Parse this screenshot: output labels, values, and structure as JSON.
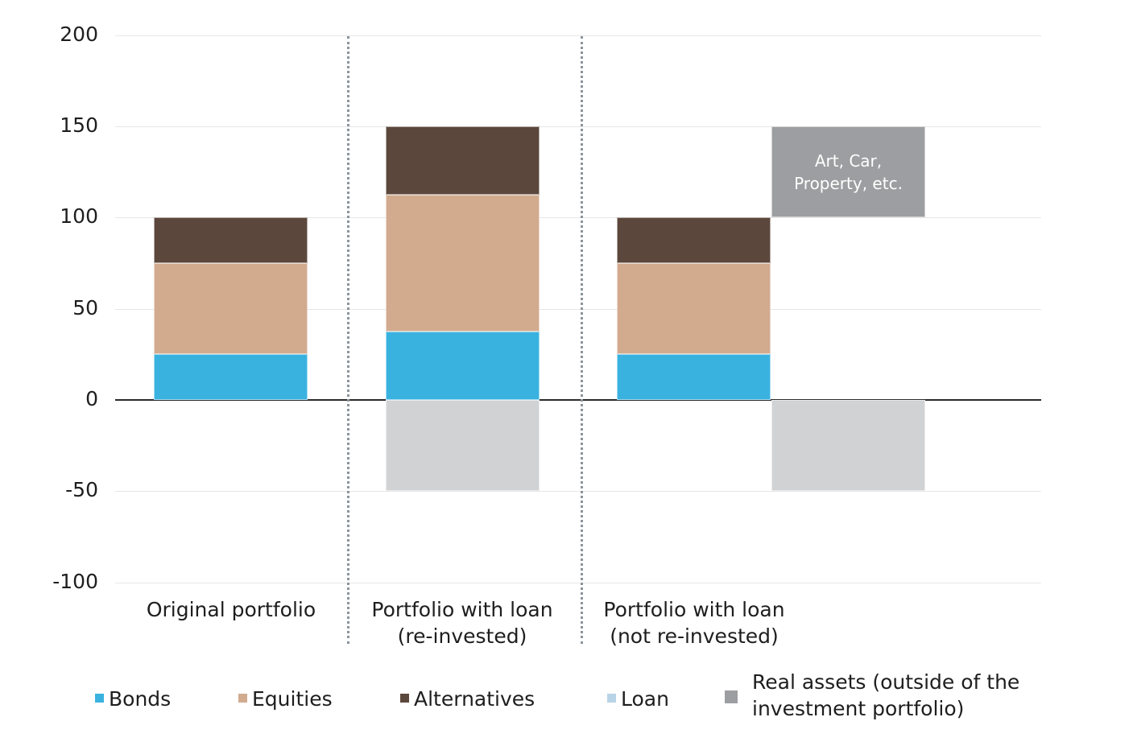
{
  "chart_data": {
    "type": "bar",
    "stacked": true,
    "title": "",
    "xlabel": "",
    "ylabel": "",
    "ylim": [
      -100,
      200
    ],
    "yticks": [
      200,
      150,
      100,
      50,
      0,
      -50,
      -100
    ],
    "grid": true,
    "legend_position": "bottom",
    "categories": [
      "Original portfolio",
      "Portfolio with loan\n(re-invested)",
      "Portfolio with loan\n(not re-invested)"
    ],
    "series": [
      {
        "name": "Bonds",
        "color": "#3ab2e0",
        "values": [
          25,
          37.5,
          25
        ]
      },
      {
        "name": "Equities",
        "color": "#d2ab8f",
        "values": [
          50,
          75,
          50
        ]
      },
      {
        "name": "Alternatives",
        "color": "#5c473c",
        "values": [
          25,
          37.5,
          25
        ]
      },
      {
        "name": "Loan",
        "color": "#d1d2d4",
        "legend_color": "#b9d4e6",
        "values": [
          0,
          -50,
          -50
        ]
      },
      {
        "name": "Real assets (outside of the\ninvestment portfolio)",
        "color": "#9d9ea1",
        "values": [
          0,
          0,
          50
        ],
        "base": [
          0,
          0,
          100
        ]
      }
    ],
    "annotations": [
      {
        "text": "Art, Car,\nProperty, etc.",
        "target": "Real assets bar (category 3)",
        "range": [
          100,
          150
        ]
      }
    ]
  },
  "legend": [
    {
      "label": "Bonds",
      "color": "#3ab2e0"
    },
    {
      "label": "Equities",
      "color": "#d2ab8f"
    },
    {
      "label": "Alternatives",
      "color": "#5c473c"
    },
    {
      "label": "Loan",
      "color": "#b9d4e6"
    },
    {
      "label": "Real assets (outside of the\ninvestment portfolio)",
      "color": "#9d9ea1"
    }
  ]
}
